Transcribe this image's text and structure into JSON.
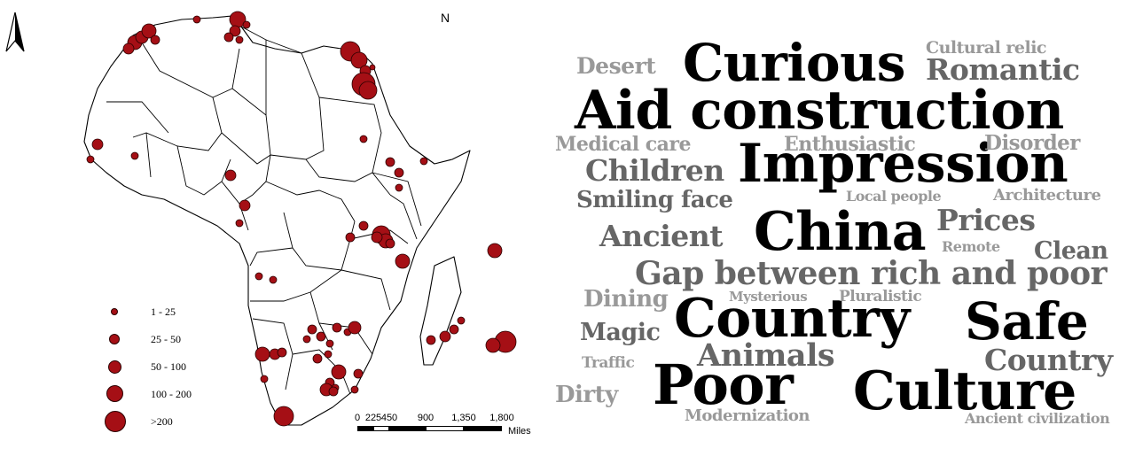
{
  "map": {
    "north_label": "N",
    "marker_color": "#a50f15",
    "legend": {
      "items": [
        {
          "label": "1 - 25"
        },
        {
          "label": "25 - 50"
        },
        {
          "label": "50 - 100"
        },
        {
          "label": "100 - 200"
        },
        {
          "label": ">200"
        }
      ]
    },
    "scale": {
      "ticks": [
        "0",
        "225",
        "450",
        "900",
        "1,350",
        "1,800"
      ],
      "unit": "Miles"
    }
  },
  "word_cloud": {
    "colors": {
      "dark": "#000000",
      "mid": "#666666",
      "light": "#999999"
    },
    "words": [
      {
        "text": "Curious",
        "color": "dark"
      },
      {
        "text": "Aid construction",
        "color": "dark"
      },
      {
        "text": "Impression",
        "color": "dark"
      },
      {
        "text": "China",
        "color": "dark"
      },
      {
        "text": "Country",
        "color": "dark"
      },
      {
        "text": "Safe",
        "color": "dark"
      },
      {
        "text": "Poor",
        "color": "dark"
      },
      {
        "text": "Culture",
        "color": "dark"
      },
      {
        "text": "Cultural relic",
        "color": "light"
      },
      {
        "text": "Desert",
        "color": "light"
      },
      {
        "text": "Romantic",
        "color": "mid"
      },
      {
        "text": "Medical care",
        "color": "light"
      },
      {
        "text": "Enthusiastic",
        "color": "light"
      },
      {
        "text": "Disorder",
        "color": "light"
      },
      {
        "text": "Children",
        "color": "mid"
      },
      {
        "text": "Smiling face",
        "color": "mid"
      },
      {
        "text": "Local people",
        "color": "light"
      },
      {
        "text": "Architecture",
        "color": "light"
      },
      {
        "text": "Prices",
        "color": "mid"
      },
      {
        "text": "Ancient",
        "color": "mid"
      },
      {
        "text": "Remote",
        "color": "light"
      },
      {
        "text": "Clean",
        "color": "mid"
      },
      {
        "text": "Gap between rich and poor",
        "color": "mid"
      },
      {
        "text": "Dining",
        "color": "light"
      },
      {
        "text": "Mysterious",
        "color": "light"
      },
      {
        "text": "Pluralistic",
        "color": "light"
      },
      {
        "text": "Magic",
        "color": "mid"
      },
      {
        "text": "Animals",
        "color": "mid"
      },
      {
        "text": "Country",
        "color": "mid"
      },
      {
        "text": "Traffic",
        "color": "light"
      },
      {
        "text": "Dirty",
        "color": "light"
      },
      {
        "text": "Modernization",
        "color": "light"
      },
      {
        "text": "Ancient civilization",
        "color": "light"
      }
    ]
  }
}
